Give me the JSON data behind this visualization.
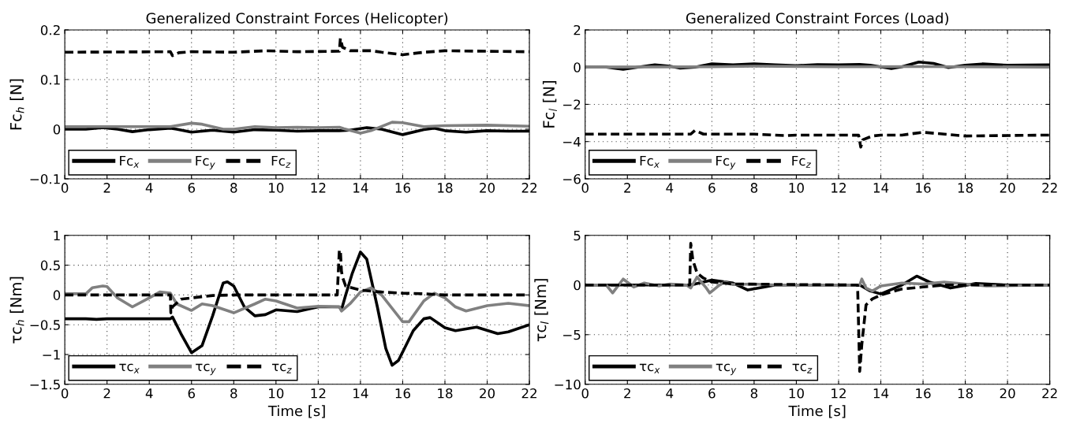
{
  "chart_data": [
    {
      "type": "line",
      "title": "Generalized Constraint Forces (Helicopter)",
      "ylabel": "Fc$_{h}$ [N]",
      "xlim": [
        0,
        22
      ],
      "xticks": [
        0,
        2,
        4,
        6,
        8,
        10,
        12,
        14,
        16,
        18,
        20,
        22
      ],
      "ylim": [
        -0.1,
        0.2
      ],
      "yticks": [
        -0.1,
        0,
        0.1,
        0.2
      ],
      "grid": true,
      "legend": "bottom left",
      "marker": "none",
      "series": [
        {
          "name": "Fc$_{x}$",
          "color": "#000000",
          "line_style": "solid",
          "x": [
            0,
            1,
            1.8,
            2.5,
            3.2,
            4,
            5,
            5.3,
            6,
            7,
            8,
            9,
            10,
            11,
            12,
            13,
            13.5,
            14.3,
            15,
            16,
            17,
            17.5,
            18,
            19,
            20,
            21,
            22
          ],
          "values": [
            0,
            0,
            0.003,
            0,
            -0.005,
            -0.001,
            0.002,
            0,
            -0.006,
            -0.002,
            -0.006,
            -0.001,
            -0.002,
            -0.004,
            -0.003,
            -0.003,
            -0.002,
            0.003,
            0,
            -0.011,
            -0.001,
            0.002,
            -0.003,
            -0.006,
            -0.003,
            -0.004,
            -0.004
          ]
        },
        {
          "name": "Fc$_{y}$",
          "color": "#808080",
          "line_style": "solid",
          "x": [
            0,
            5,
            6,
            6.5,
            7.5,
            8,
            9,
            10,
            11,
            12,
            13,
            13.2,
            14,
            14.5,
            15.5,
            16,
            17,
            18,
            20,
            22
          ],
          "values": [
            0.005,
            0.005,
            0.012,
            0.01,
            0,
            0,
            0.005,
            0.003,
            0.004,
            0.003,
            0.004,
            0.001,
            -0.008,
            -0.003,
            0.014,
            0.013,
            0.005,
            0.007,
            0.008,
            0.006
          ]
        },
        {
          "name": "Fc$_{z}$",
          "color": "#000000",
          "line_style": "dashed",
          "x": [
            0,
            5,
            5.1,
            5.4,
            6,
            8,
            9.5,
            11,
            13,
            13.05,
            13.15,
            13.5,
            14.5,
            15,
            16,
            17,
            18,
            20,
            22
          ],
          "values": [
            0.155,
            0.156,
            0.148,
            0.154,
            0.156,
            0.155,
            0.158,
            0.156,
            0.157,
            0.183,
            0.165,
            0.158,
            0.158,
            0.155,
            0.15,
            0.155,
            0.158,
            0.157,
            0.156
          ]
        }
      ]
    },
    {
      "type": "line",
      "title": "Generalized Constraint Forces (Load)",
      "ylabel": "Fc$_{l}$ [N]",
      "xlim": [
        0,
        22
      ],
      "xticks": [
        0,
        2,
        4,
        6,
        8,
        10,
        12,
        14,
        16,
        18,
        20,
        22
      ],
      "ylim": [
        -6,
        2
      ],
      "yticks": [
        -6,
        -4,
        -2,
        0,
        2
      ],
      "grid": true,
      "legend": "bottom left",
      "marker": "none",
      "series": [
        {
          "name": "Fc$_{x}$",
          "color": "#000000",
          "line_style": "solid",
          "x": [
            0,
            1,
            1.8,
            2.5,
            3.3,
            4,
            4.5,
            5.2,
            6,
            7,
            8,
            9,
            10,
            11,
            12,
            13,
            13.5,
            14.5,
            15,
            15.8,
            16.5,
            17.2,
            18,
            18.8,
            20,
            22
          ],
          "values": [
            0,
            0,
            -0.12,
            0,
            0.12,
            0.05,
            -0.05,
            0,
            0.18,
            0.12,
            0.18,
            0.12,
            0.08,
            0.13,
            0.12,
            0.14,
            0.1,
            -0.08,
            0.02,
            0.27,
            0.2,
            -0.02,
            0.1,
            0.17,
            0.1,
            0.12
          ]
        },
        {
          "name": "Fc$_{y}$",
          "color": "#808080",
          "line_style": "solid",
          "x": [
            0,
            6,
            8,
            12,
            16,
            22
          ],
          "values": [
            0,
            0.02,
            0.05,
            0.02,
            0.03,
            0
          ]
        },
        {
          "name": "Fc$_{z}$",
          "color": "#000000",
          "line_style": "dashed",
          "x": [
            0,
            5,
            5.2,
            5.6,
            8,
            9.5,
            10,
            12,
            12.95,
            13.05,
            13.15,
            13.6,
            14,
            15,
            16,
            17,
            18,
            22
          ],
          "values": [
            -3.6,
            -3.6,
            -3.4,
            -3.6,
            -3.6,
            -3.68,
            -3.65,
            -3.65,
            -3.66,
            -4.3,
            -3.9,
            -3.7,
            -3.65,
            -3.65,
            -3.5,
            -3.6,
            -3.7,
            -3.65
          ]
        }
      ]
    },
    {
      "type": "line",
      "ylabel": "τc$_{h}$ [Nm]",
      "xlabel": "Time [s]",
      "xlim": [
        0,
        22
      ],
      "xticks": [
        0,
        2,
        4,
        6,
        8,
        10,
        12,
        14,
        16,
        18,
        20,
        22
      ],
      "ylim": [
        -1.5,
        1
      ],
      "yticks": [
        -1.5,
        -1,
        -0.5,
        0,
        0.5,
        1
      ],
      "grid": true,
      "legend": "bottom left",
      "marker": "none",
      "series": [
        {
          "name": "τc$_{x}$",
          "color": "#000000",
          "line_style": "solid",
          "x": [
            0,
            1,
            1.5,
            2,
            3,
            5,
            5.1,
            5.5,
            6,
            6.5,
            7,
            7.5,
            7.7,
            8,
            8.5,
            9,
            9.5,
            10,
            11,
            12,
            12.5,
            13,
            13.1,
            13.3,
            13.6,
            14,
            14.3,
            14.8,
            15.2,
            15.5,
            15.8,
            16.5,
            17,
            17.3,
            18,
            18.5,
            19.5,
            20.5,
            21,
            22
          ],
          "values": [
            -0.4,
            -0.4,
            -0.41,
            -0.4,
            -0.4,
            -0.4,
            -0.37,
            -0.65,
            -0.97,
            -0.85,
            -0.35,
            0.2,
            0.22,
            0.15,
            -0.2,
            -0.35,
            -0.33,
            -0.25,
            -0.28,
            -0.2,
            -0.2,
            -0.2,
            -0.25,
            0,
            0.35,
            0.72,
            0.6,
            -0.2,
            -0.9,
            -1.18,
            -1.1,
            -0.6,
            -0.4,
            -0.38,
            -0.55,
            -0.6,
            -0.54,
            -0.65,
            -0.62,
            -0.5
          ]
        },
        {
          "name": "τc$_{y}$",
          "color": "#808080",
          "line_style": "solid",
          "x": [
            0,
            1,
            1.3,
            1.8,
            2,
            2.5,
            3.2,
            4,
            4.5,
            5,
            5.3,
            6,
            6.5,
            7,
            8,
            9,
            9.5,
            10,
            11,
            12,
            13,
            13.1,
            13.5,
            14,
            14.5,
            15,
            16,
            16.3,
            17,
            17.5,
            18,
            18.5,
            19,
            20,
            21,
            22
          ],
          "values": [
            0.02,
            0.02,
            0.12,
            0.15,
            0.14,
            -0.05,
            -0.2,
            -0.05,
            0.05,
            0.03,
            -0.15,
            -0.26,
            -0.15,
            -0.18,
            -0.3,
            -0.15,
            -0.07,
            -0.1,
            -0.22,
            -0.19,
            -0.2,
            -0.27,
            -0.15,
            0.05,
            0.12,
            0,
            -0.45,
            -0.45,
            -0.1,
            0.03,
            -0.05,
            -0.2,
            -0.27,
            -0.18,
            -0.14,
            -0.18
          ]
        },
        {
          "name": "τc$_{z}$",
          "color": "#000000",
          "line_style": "dashed",
          "x": [
            0,
            5,
            5.02,
            5.1,
            5.5,
            6,
            7,
            8,
            12.9,
            13,
            13.05,
            13.1,
            13.15,
            13.3,
            14,
            15,
            16,
            17,
            18,
            22
          ],
          "values": [
            0,
            0,
            -0.3,
            -0.2,
            -0.07,
            -0.05,
            -0.01,
            0,
            0,
            0.75,
            0.75,
            0.4,
            0.3,
            0.15,
            0.08,
            0.05,
            0.03,
            0.02,
            0,
            0
          ]
        }
      ]
    },
    {
      "type": "line",
      "ylabel": "τc$_{l}$ [Nm]",
      "xlabel": "Time [s]",
      "xlim": [
        0,
        22
      ],
      "xticks": [
        0,
        2,
        4,
        6,
        8,
        10,
        12,
        14,
        16,
        18,
        20,
        22
      ],
      "ylim": [
        -10,
        5
      ],
      "yticks": [
        -10,
        -5,
        0,
        5
      ],
      "grid": true,
      "legend": "bottom left",
      "marker": "none",
      "series": [
        {
          "name": "τc$_{x}$",
          "color": "#000000",
          "line_style": "solid",
          "x": [
            0,
            5,
            6,
            7,
            7.7,
            8.5,
            9,
            12,
            13,
            13.5,
            14,
            15,
            15.7,
            16.3,
            17.3,
            18.5,
            20,
            22
          ],
          "values": [
            0,
            0,
            0.5,
            0.2,
            -0.5,
            -0.2,
            0,
            0,
            0,
            -0.6,
            -0.9,
            0,
            0.9,
            0.3,
            -0.3,
            0.15,
            0,
            0
          ]
        },
        {
          "name": "τc$_{y}$",
          "color": "#808080",
          "line_style": "solid",
          "x": [
            0,
            1,
            1.3,
            1.8,
            2.3,
            2.8,
            3.5,
            4,
            4.8,
            5,
            5.3,
            5.7,
            5.9,
            6.3,
            6.6,
            7,
            8,
            9,
            10,
            12,
            13,
            13.1,
            13.3,
            13.6,
            14,
            15,
            16,
            17,
            18,
            19,
            22
          ],
          "values": [
            0,
            0,
            -0.8,
            0.6,
            -0.2,
            0.2,
            -0.1,
            0.1,
            0,
            -0.3,
            0.8,
            -0.2,
            -0.8,
            -0.1,
            0.3,
            0.05,
            0.1,
            0,
            0,
            0,
            0,
            0.6,
            -0.3,
            -0.6,
            -0.1,
            0.2,
            0.1,
            0.3,
            0.1,
            -0.1,
            0
          ]
        },
        {
          "name": "τc$_{z}$",
          "color": "#000000",
          "line_style": "dashed",
          "x": [
            0,
            4.95,
            5,
            5.1,
            5.3,
            5.6,
            6,
            7,
            10,
            12.9,
            13,
            13.1,
            13.3,
            13.6,
            14,
            15,
            16,
            17,
            22
          ],
          "values": [
            0,
            0,
            4.2,
            2.5,
            1.2,
            0.7,
            0.3,
            0.1,
            0.05,
            0,
            -8.7,
            -6,
            -2,
            -1.4,
            -1,
            -0.4,
            -0.2,
            0,
            0
          ]
        }
      ]
    }
  ]
}
